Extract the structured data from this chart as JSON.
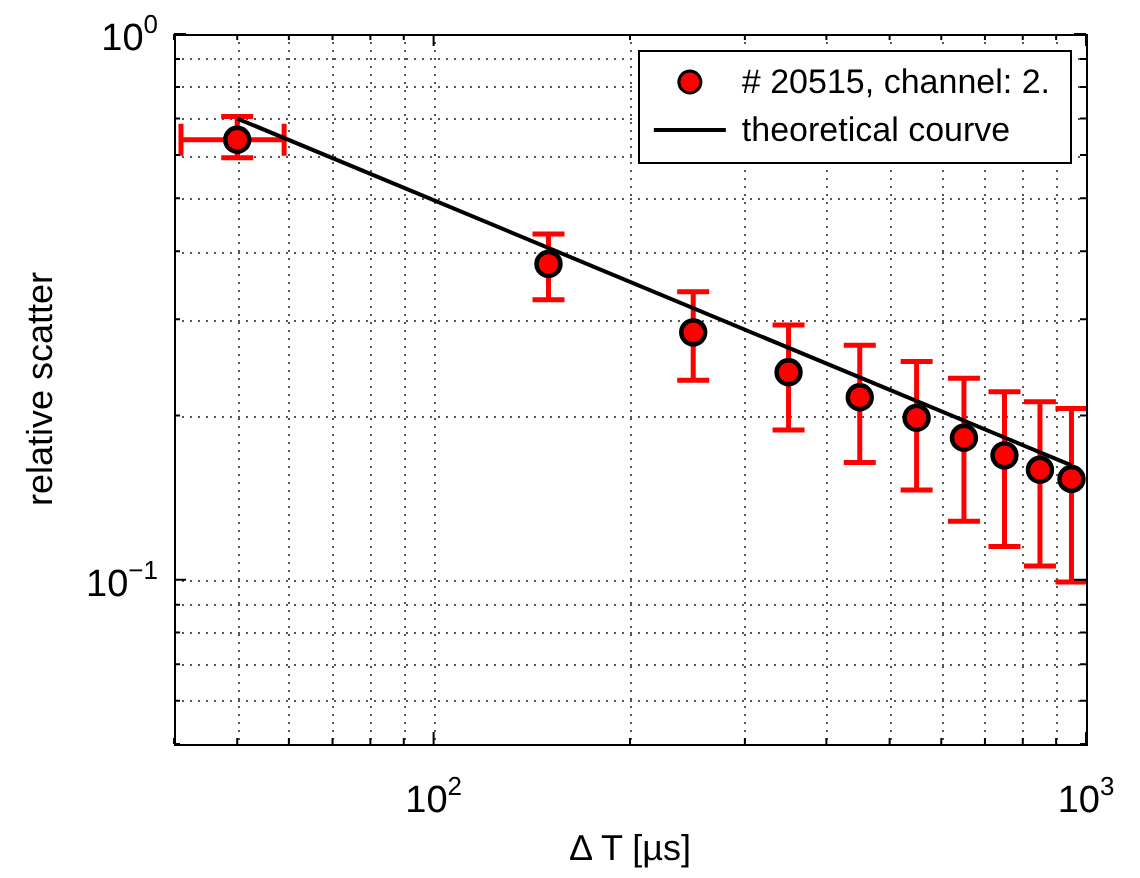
{
  "chart_data": {
    "type": "scatter",
    "xlabel": "Δ T [µs]",
    "ylabel": "relative scatter",
    "log": "xy",
    "grid": true,
    "legend": "top right",
    "marker": "circle",
    "xlim": [
      40,
      1000
    ],
    "ylim": [
      0.05,
      1
    ],
    "xticks": [
      {
        "value": 40,
        "label": null
      },
      {
        "value": 50,
        "label": null
      },
      {
        "value": 60,
        "label": null
      },
      {
        "value": 70,
        "label": null
      },
      {
        "value": 80,
        "label": null
      },
      {
        "value": 90,
        "label": null
      },
      {
        "value": 100,
        "label": "10$^{2}$"
      },
      {
        "value": 200,
        "label": null
      },
      {
        "value": 300,
        "label": null
      },
      {
        "value": 400,
        "label": null
      },
      {
        "value": 500,
        "label": null
      },
      {
        "value": 600,
        "label": null
      },
      {
        "value": 700,
        "label": null
      },
      {
        "value": 800,
        "label": null
      },
      {
        "value": 900,
        "label": null
      },
      {
        "value": 1000,
        "label": "10$^{3}$"
      }
    ],
    "yticks": [
      {
        "value": 0.05,
        "label": null
      },
      {
        "value": 0.06,
        "label": null
      },
      {
        "value": 0.07,
        "label": null
      },
      {
        "value": 0.08,
        "label": null
      },
      {
        "value": 0.09,
        "label": null
      },
      {
        "value": 0.1,
        "label": "10$^{−1}$"
      },
      {
        "value": 0.2,
        "label": null
      },
      {
        "value": 0.3,
        "label": null
      },
      {
        "value": 0.4,
        "label": null
      },
      {
        "value": 0.5,
        "label": null
      },
      {
        "value": 0.6,
        "label": null
      },
      {
        "value": 0.7,
        "label": null
      },
      {
        "value": 0.8,
        "label": null
      },
      {
        "value": 0.9,
        "label": null
      },
      {
        "value": 1,
        "label": "10$^{0}$"
      }
    ],
    "series": [
      {
        "name": "# 20515, channel: 2.",
        "color": "#ff0000",
        "x": [
          50,
          150,
          250,
          350,
          450,
          550,
          650,
          750,
          850,
          950
        ],
        "values": [
          0.64,
          0.379,
          0.284,
          0.24,
          0.216,
          0.198,
          0.182,
          0.169,
          0.159,
          0.153
        ],
        "errors": [
          [
            0.593,
            0.706
          ],
          [
            0.326,
            0.43
          ],
          [
            0.232,
            0.337
          ],
          [
            0.188,
            0.293
          ],
          [
            0.164,
            0.269
          ],
          [
            0.146,
            0.251
          ],
          [
            0.128,
            0.234
          ],
          [
            0.115,
            0.221
          ],
          [
            0.106,
            0.212
          ],
          [
            0.099,
            0.206
          ]
        ],
        "xerrors": [
          [
            41,
            59
          ],
          null,
          null,
          null,
          null,
          null,
          null,
          null,
          null,
          null
        ]
      },
      {
        "name": "theoretical courve",
        "type": "line",
        "color": "#000000",
        "x": [
          50,
          950
        ],
        "values": [
          0.7,
          0.162
        ],
        "marker": "none"
      }
    ]
  }
}
